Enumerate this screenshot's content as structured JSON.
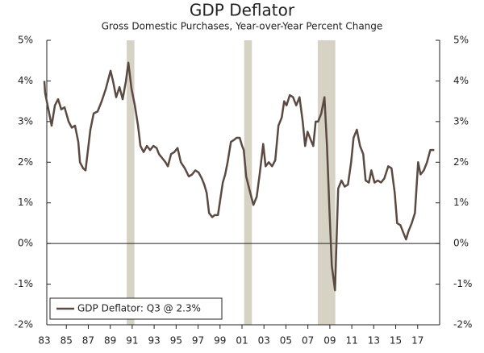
{
  "chart_data": {
    "type": "line",
    "title": "GDP Deflator",
    "subtitle": "Gross Domestic Purchases, Year-over-Year Percent Change",
    "xlim": [
      1983,
      2019
    ],
    "xticks": [
      {
        "value": 1983,
        "label": "83"
      },
      {
        "value": 1985,
        "label": "85"
      },
      {
        "value": 1987,
        "label": "87"
      },
      {
        "value": 1989,
        "label": "89"
      },
      {
        "value": 1991,
        "label": "91"
      },
      {
        "value": 1993,
        "label": "93"
      },
      {
        "value": 1995,
        "label": "95"
      },
      {
        "value": 1997,
        "label": "97"
      },
      {
        "value": 1999,
        "label": "99"
      },
      {
        "value": 2001,
        "label": "01"
      },
      {
        "value": 2003,
        "label": "03"
      },
      {
        "value": 2005,
        "label": "05"
      },
      {
        "value": 2007,
        "label": "07"
      },
      {
        "value": 2009,
        "label": "09"
      },
      {
        "value": 2011,
        "label": "11"
      },
      {
        "value": 2013,
        "label": "13"
      },
      {
        "value": 2015,
        "label": "15"
      },
      {
        "value": 2017,
        "label": "17"
      }
    ],
    "ylim": [
      -2,
      5
    ],
    "yticks": [
      {
        "value": -2,
        "label": "-2%"
      },
      {
        "value": -1,
        "label": "-1%"
      },
      {
        "value": 0,
        "label": "0%"
      },
      {
        "value": 1,
        "label": "1%"
      },
      {
        "value": 2,
        "label": "2%"
      },
      {
        "value": 3,
        "label": "3%"
      },
      {
        "value": 4,
        "label": "4%"
      },
      {
        "value": 5,
        "label": "5%"
      }
    ],
    "zero_line": true,
    "shaded_periods": [
      {
        "start": 1990.5,
        "end": 1991.2
      },
      {
        "start": 2001.2,
        "end": 2001.9
      },
      {
        "start": 2007.9,
        "end": 2009.5
      }
    ],
    "shade_color": "#d6d2c4",
    "legend": "bottom-left",
    "series": [
      {
        "name": "GDP Deflator: Q3 @ 2.3%",
        "color": "#5a4a42",
        "x": [
          1983.0,
          1983.07,
          1983.37,
          1983.66,
          1983.96,
          1984.25,
          1984.54,
          1984.84,
          1985.21,
          1985.5,
          1985.79,
          1986.09,
          1986.24,
          1986.53,
          1986.75,
          1986.97,
          1987.19,
          1987.49,
          1987.85,
          1988.22,
          1988.59,
          1989.03,
          1989.25,
          1989.54,
          1989.84,
          1990.13,
          1990.43,
          1990.65,
          1990.94,
          1991.24,
          1991.53,
          1991.75,
          1992.04,
          1992.34,
          1992.63,
          1992.93,
          1993.22,
          1993.44,
          1993.74,
          1994.03,
          1994.25,
          1994.54,
          1994.84,
          1995.13,
          1995.43,
          1995.79,
          1996.16,
          1996.46,
          1996.75,
          1997.04,
          1997.34,
          1997.56,
          1997.78,
          1998.0,
          1998.29,
          1998.51,
          1998.81,
          1999.03,
          1999.25,
          1999.47,
          1999.69,
          1999.99,
          2000.28,
          2000.5,
          2000.79,
          2001.01,
          2001.16,
          2001.38,
          2001.75,
          2002.04,
          2002.34,
          2002.63,
          2002.93,
          2003.15,
          2003.44,
          2003.74,
          2004.03,
          2004.32,
          2004.62,
          2004.84,
          2005.06,
          2005.35,
          2005.65,
          2005.94,
          2006.24,
          2006.53,
          2006.75,
          2006.97,
          2007.26,
          2007.49,
          2007.71,
          2007.93,
          2008.22,
          2008.51,
          2008.74,
          2008.96,
          2009.18,
          2009.47,
          2009.76,
          2010.06,
          2010.35,
          2010.65,
          2010.94,
          2011.16,
          2011.46,
          2011.75,
          2012.04,
          2012.26,
          2012.56,
          2012.78,
          2013.07,
          2013.37,
          2013.66,
          2013.96,
          2014.32,
          2014.62,
          2014.91,
          2015.13,
          2015.43,
          2015.72,
          2015.94,
          2016.16,
          2016.46,
          2016.75,
          2017.04,
          2017.26,
          2017.56,
          2017.85,
          2018.15,
          2018.51
        ],
        "values": [
          4.0,
          3.7,
          3.3,
          2.9,
          3.4,
          3.55,
          3.3,
          3.35,
          3.0,
          2.85,
          2.9,
          2.5,
          2.0,
          1.85,
          1.8,
          2.3,
          2.8,
          3.2,
          3.25,
          3.5,
          3.8,
          4.25,
          4.0,
          3.6,
          3.85,
          3.55,
          4.0,
          4.45,
          3.8,
          3.4,
          2.9,
          2.4,
          2.25,
          2.4,
          2.3,
          2.4,
          2.35,
          2.2,
          2.1,
          2.0,
          1.9,
          2.2,
          2.25,
          2.35,
          2.0,
          1.85,
          1.65,
          1.7,
          1.8,
          1.75,
          1.6,
          1.45,
          1.25,
          0.75,
          0.65,
          0.7,
          0.7,
          1.1,
          1.5,
          1.7,
          2.0,
          2.5,
          2.55,
          2.6,
          2.6,
          2.4,
          2.3,
          1.65,
          1.25,
          0.95,
          1.15,
          1.75,
          2.45,
          1.9,
          2.0,
          1.9,
          2.05,
          2.9,
          3.1,
          3.5,
          3.4,
          3.65,
          3.6,
          3.4,
          3.6,
          3.0,
          2.4,
          2.75,
          2.55,
          2.4,
          3.0,
          3.0,
          3.2,
          3.6,
          2.4,
          0.85,
          -0.55,
          -1.15,
          1.35,
          1.55,
          1.4,
          1.45,
          2.0,
          2.6,
          2.8,
          2.4,
          2.2,
          1.55,
          1.5,
          1.8,
          1.5,
          1.55,
          1.5,
          1.6,
          1.9,
          1.85,
          1.25,
          0.5,
          0.45,
          0.25,
          0.1,
          0.3,
          0.5,
          0.75,
          2.0,
          1.7,
          1.8,
          2.0,
          2.3,
          2.3
        ]
      }
    ]
  }
}
